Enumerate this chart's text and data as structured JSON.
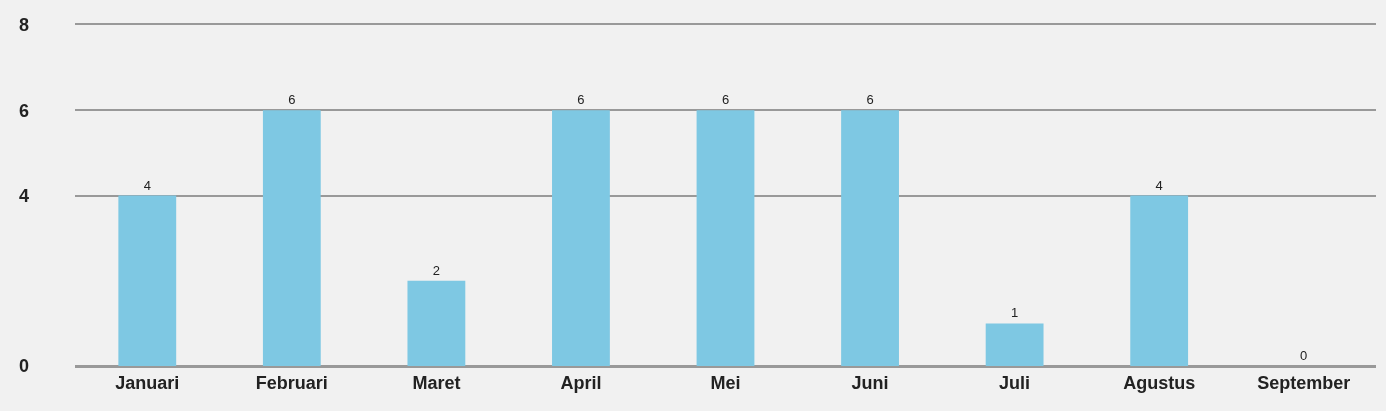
{
  "chart_data": {
    "type": "bar",
    "categories": [
      "Januari",
      "Februari",
      "Maret",
      "April",
      "Mei",
      "Juni",
      "Juli",
      "Agustus",
      "September"
    ],
    "values": [
      4,
      6,
      2,
      6,
      6,
      6,
      1,
      4,
      0
    ],
    "color": "#7ec8e3",
    "ylim": [
      0,
      8
    ],
    "yticks": [
      0,
      4,
      6,
      8
    ],
    "grid": "y",
    "data_labels": true
  }
}
